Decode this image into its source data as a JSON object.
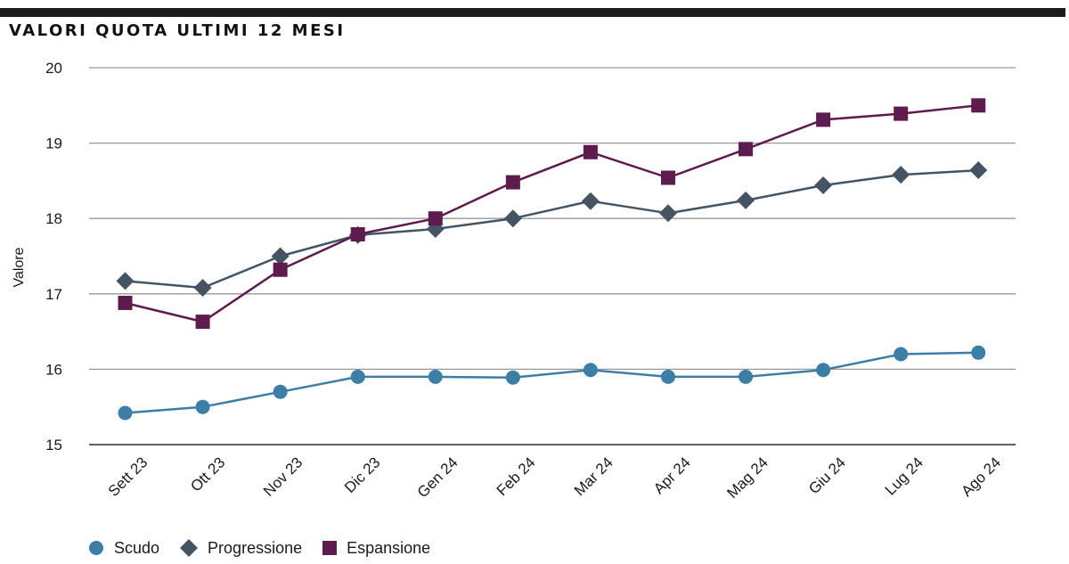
{
  "chart_data": {
    "type": "line",
    "title": "VALORI QUOTA ULTIMI 12 MESI",
    "ylabel": "Valore",
    "xlabel": "",
    "categories": [
      "Sett 23",
      "Ott 23",
      "Nov 23",
      "Dic 23",
      "Gen 24",
      "Feb 24",
      "Mar 24",
      "Apr 24",
      "Mag 24",
      "Giu 24",
      "Lug 24",
      "Ago 24"
    ],
    "ylim": [
      15,
      20
    ],
    "yticks": [
      15,
      16,
      17,
      18,
      19,
      20
    ],
    "grid": true,
    "legend_position": "bottom-left",
    "series": [
      {
        "name": "Scudo",
        "color": "#3d7ea6",
        "marker": "circle",
        "values": [
          15.42,
          15.5,
          15.7,
          15.9,
          15.9,
          15.89,
          15.99,
          15.9,
          15.9,
          15.99,
          16.2,
          16.22
        ]
      },
      {
        "name": "Progressione",
        "color": "#455463",
        "marker": "diamond",
        "values": [
          17.17,
          17.08,
          17.5,
          17.78,
          17.86,
          18.0,
          18.23,
          18.07,
          18.24,
          18.44,
          18.58,
          18.64
        ]
      },
      {
        "name": "Espansione",
        "color": "#5e1b4e",
        "marker": "square",
        "values": [
          16.88,
          16.63,
          17.32,
          17.79,
          18.0,
          18.48,
          18.88,
          18.54,
          18.92,
          19.31,
          19.39,
          19.5
        ]
      }
    ]
  }
}
